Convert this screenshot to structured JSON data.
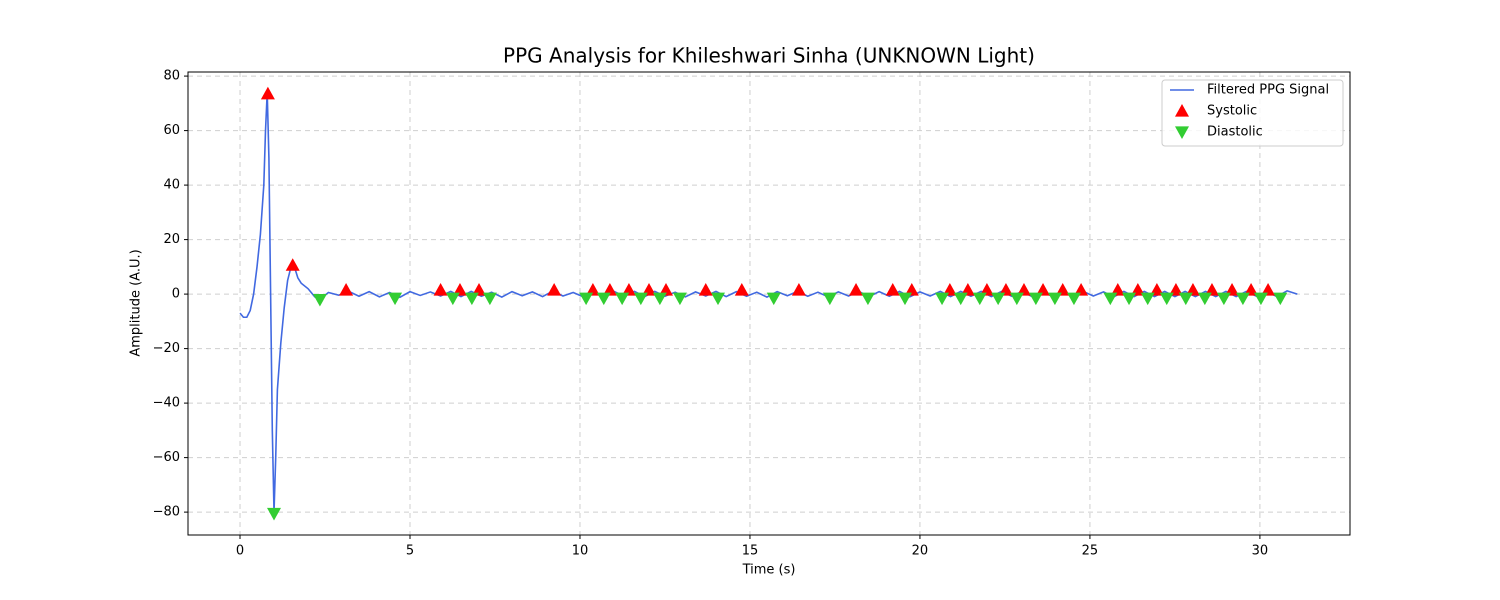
{
  "chart_data": {
    "type": "line",
    "title": "PPG Analysis for Khileshwari Sinha (UNKNOWN Light)",
    "x_label": "Time (s)",
    "y_label": "Amplitude (A.U.)",
    "xlim": [
      -1.53,
      32.65
    ],
    "ylim": [
      -88.4,
      81.5
    ],
    "xticks": [
      0,
      5,
      10,
      15,
      20,
      25,
      30
    ],
    "yticks": [
      {
        "value": -80,
        "label": "−80"
      },
      {
        "value": -60,
        "label": "−60"
      },
      {
        "value": -40,
        "label": "−40"
      },
      {
        "value": -20,
        "label": "−20"
      },
      0,
      20,
      40,
      60,
      80
    ],
    "grid": true,
    "legend": "upper right",
    "series": [
      {
        "name": "Filtered PPG Signal",
        "type": "line",
        "color": "#4169e1",
        "x": [
          0,
          0.1,
          0.2,
          0.3,
          0.4,
          0.5,
          0.6,
          0.7,
          0.75,
          0.8,
          0.85,
          0.9,
          0.95,
          1.0,
          1.05,
          1.1,
          1.2,
          1.3,
          1.4,
          1.5,
          1.6,
          1.7,
          1.8,
          2.0,
          2.2,
          2.35,
          2.6,
          2.9,
          3.2,
          3.5,
          3.8,
          4.1,
          4.4,
          4.7,
          5.0,
          5.3,
          5.6,
          5.9,
          6.2,
          6.5,
          6.8,
          7.1,
          7.4,
          7.7,
          8.0,
          8.3,
          8.6,
          8.9,
          9.2,
          9.5,
          9.8,
          10.1,
          10.4,
          10.7,
          11.0,
          11.3,
          11.6,
          11.9,
          12.2,
          12.5,
          12.8,
          13.1,
          13.4,
          13.7,
          14.0,
          14.3,
          14.6,
          14.9,
          15.2,
          15.5,
          15.8,
          16.1,
          16.4,
          16.7,
          17.0,
          17.3,
          17.6,
          17.9,
          18.2,
          18.5,
          18.8,
          19.1,
          19.4,
          19.7,
          20.0,
          20.3,
          20.6,
          20.9,
          21.2,
          21.5,
          21.8,
          22.1,
          22.4,
          22.7,
          23.0,
          23.3,
          23.6,
          23.9,
          24.2,
          24.5,
          24.8,
          25.1,
          25.4,
          25.7,
          26.0,
          26.3,
          26.6,
          26.9,
          27.2,
          27.5,
          27.8,
          28.1,
          28.4,
          28.7,
          29.0,
          29.3,
          29.6,
          29.9,
          30.2,
          30.5,
          30.8,
          31.1
        ],
        "values": [
          -7,
          -8.5,
          -8.5,
          -6,
          0,
          10,
          22,
          40,
          60,
          74,
          50,
          0,
          -50,
          -80,
          -60,
          -35,
          -18,
          -5,
          5,
          10,
          10,
          6,
          4,
          2,
          -1,
          -2,
          0.6,
          -0.4,
          1.0,
          -0.8,
          0.9,
          -1.0,
          0.6,
          -1.2,
          0.9,
          -0.5,
          0.8,
          -0.7,
          1.0,
          -0.9,
          1.0,
          -0.8,
          0.7,
          -1.1,
          0.9,
          -0.6,
          0.8,
          -0.9,
          1.1,
          -0.7,
          0.6,
          -1.0,
          1.0,
          -0.9,
          1.0,
          -0.8,
          1.0,
          -0.9,
          1.0,
          -0.8,
          0.7,
          -1.0,
          0.8,
          -0.7,
          1.0,
          -0.9,
          0.9,
          -0.8,
          0.7,
          -1.1,
          0.9,
          -0.6,
          1.0,
          -0.8,
          0.7,
          -1.0,
          0.8,
          -0.7,
          1.0,
          -0.9,
          0.9,
          -0.8,
          1.0,
          -1.0,
          0.8,
          -0.7,
          1.0,
          -0.9,
          1.0,
          -0.8,
          1.0,
          -0.9,
          1.0,
          -0.8,
          1.0,
          -0.9,
          1.0,
          -0.9,
          1.0,
          -0.8,
          1.0,
          -0.7,
          0.8,
          -1.0,
          1.0,
          -0.9,
          1.0,
          -0.9,
          1.0,
          -0.9,
          1.0,
          -0.9,
          1.0,
          -0.9,
          1.0,
          -0.9,
          1.0,
          -0.8,
          1.0,
          -0.9,
          1.2,
          0
        ]
      },
      {
        "name": "Systolic",
        "type": "scatter",
        "marker": "triangle-up",
        "color": "#ff0000",
        "x": [
          0.82,
          1.55,
          3.12,
          5.9,
          6.47,
          7.03,
          9.24,
          10.38,
          10.88,
          11.44,
          12.03,
          12.53,
          13.7,
          14.76,
          16.44,
          18.12,
          19.2,
          19.76,
          20.88,
          21.41,
          21.97,
          22.53,
          23.06,
          23.62,
          24.2,
          24.74,
          25.82,
          26.41,
          26.97,
          27.53,
          28.03,
          28.59,
          29.18,
          29.74,
          30.24
        ],
        "values": [
          73.5,
          10.6,
          1.5,
          1.5,
          1.5,
          1.5,
          1.5,
          1.5,
          1.5,
          1.5,
          1.5,
          1.5,
          1.5,
          1.5,
          1.5,
          1.5,
          1.5,
          1.5,
          1.5,
          1.5,
          1.5,
          1.5,
          1.5,
          1.5,
          1.5,
          1.5,
          1.5,
          1.5,
          1.5,
          1.5,
          1.5,
          1.5,
          1.5,
          1.5,
          1.5
        ]
      },
      {
        "name": "Diastolic",
        "type": "scatter",
        "marker": "triangle-down",
        "color": "#32cd32",
        "x": [
          1.0,
          2.35,
          4.56,
          6.26,
          6.82,
          7.35,
          10.18,
          10.7,
          11.24,
          11.79,
          12.35,
          12.94,
          14.06,
          15.7,
          17.35,
          18.47,
          19.56,
          20.65,
          21.2,
          21.76,
          22.3,
          22.85,
          23.41,
          23.97,
          24.53,
          25.6,
          26.15,
          26.7,
          27.26,
          27.82,
          28.38,
          28.94,
          29.5,
          30.03,
          30.6
        ],
        "values": [
          -80.5,
          -2,
          -1.5,
          -1.5,
          -1.5,
          -1.5,
          -1.5,
          -1.5,
          -1.5,
          -1.5,
          -1.5,
          -1.5,
          -1.5,
          -1.5,
          -1.5,
          -1.5,
          -1.5,
          -1.5,
          -1.5,
          -1.5,
          -1.5,
          -1.5,
          -1.5,
          -1.5,
          -1.5,
          -1.5,
          -1.5,
          -1.5,
          -1.5,
          -1.5,
          -1.5,
          -1.5,
          -1.5,
          -1.5,
          -1.5
        ]
      }
    ]
  }
}
